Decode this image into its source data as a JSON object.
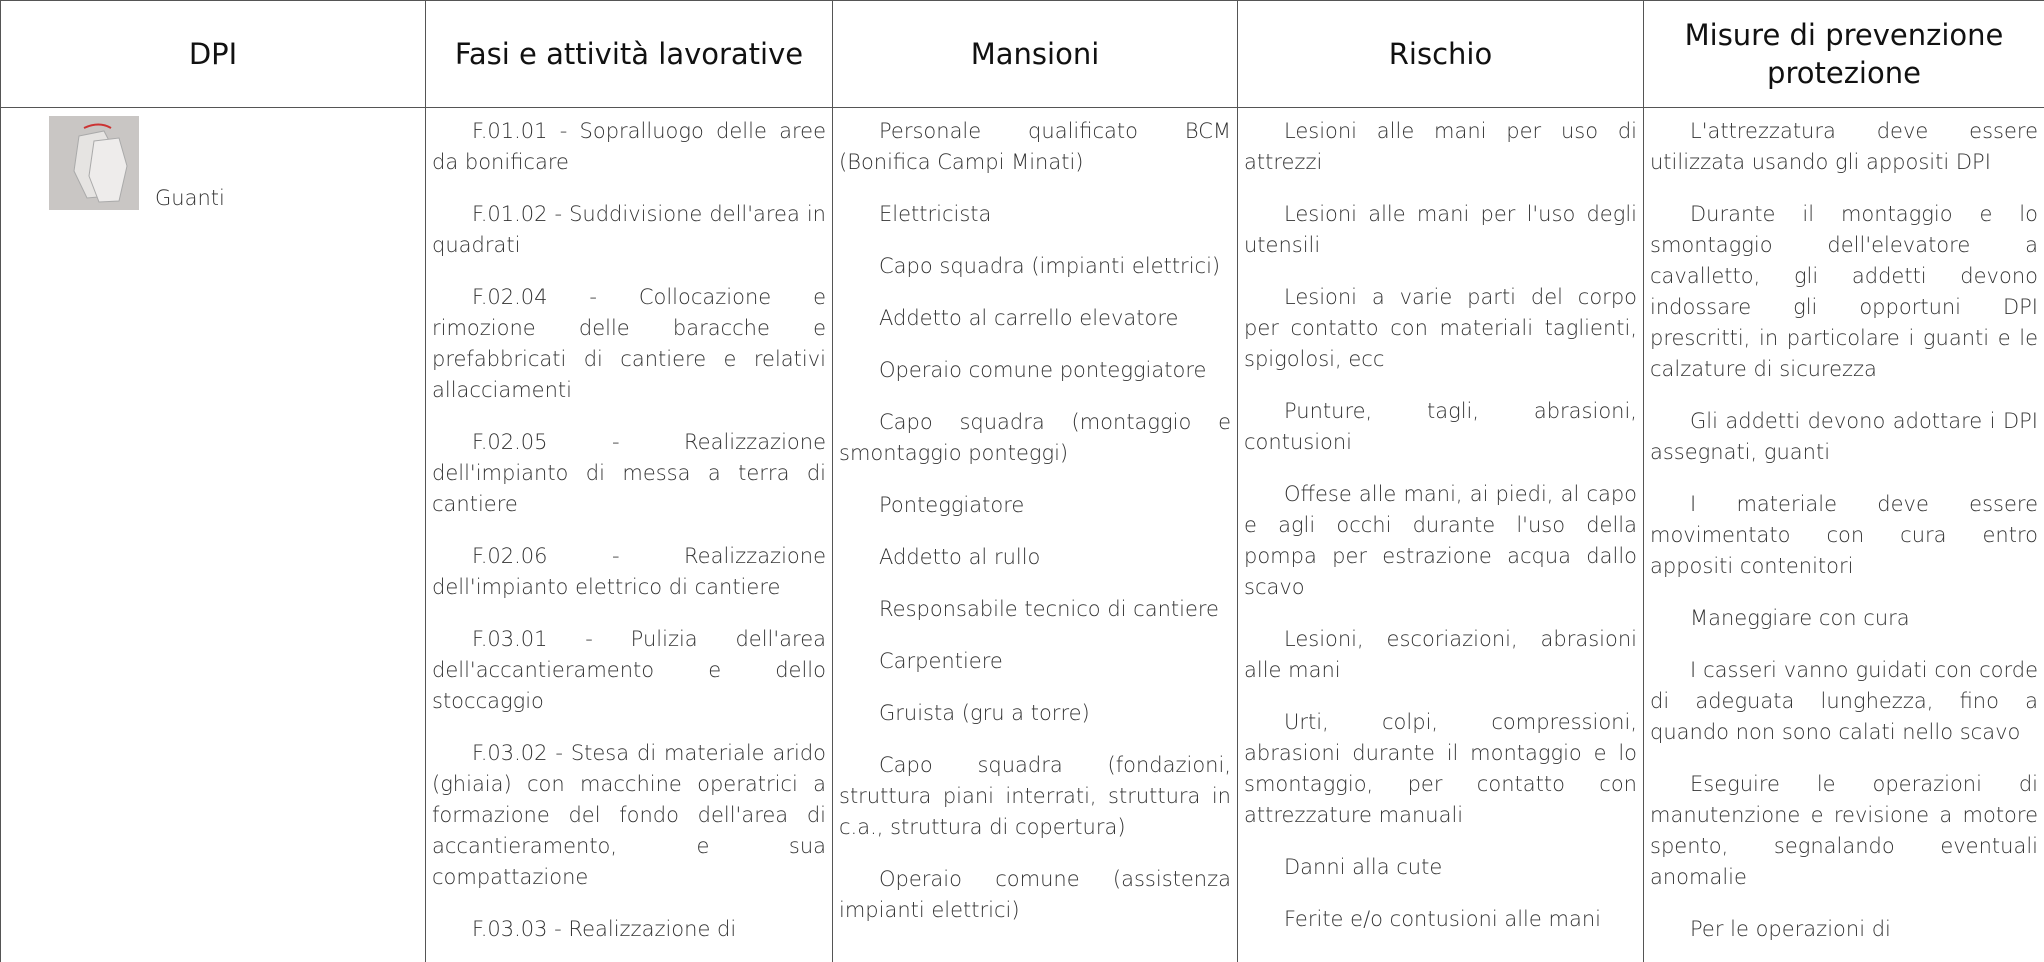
{
  "header": [
    "DPI",
    "Fasi e attività lavorative",
    "Mansioni",
    "Rischio",
    "Misure di prevenzione protezione"
  ],
  "row": {
    "dpi": "Guanti",
    "fasi": [
      "F.01.01 - Sopralluogo delle aree da bonificare",
      "F.01.02 - Suddivisione dell'area in quadrati",
      "F.02.04 - Collocazione e rimozione delle baracche e prefabbricati di cantiere e relativi allacciamenti",
      "F.02.05 - Realizzazione dell'impianto di messa a terra di cantiere",
      "F.02.06 - Realizzazione dell'impianto elettrico di cantiere",
      "F.03.01 - Pulizia dell'area dell'accantieramento e dello stoccaggio",
      "F.03.02 - Stesa di materiale arido (ghiaia) con macchine operatrici a formazione del fondo dell'area di accantieramento, e sua compattazione",
      "F.03.03 - Realizzazione di"
    ],
    "mansioni": [
      "Personale qualificato BCM (Bonifica Campi Minati)",
      "Elettricista",
      "Capo squadra (impianti elettrici)",
      "Addetto al carrello elevatore",
      "Operaio comune ponteggiatore",
      "Capo squadra (montaggio e smontaggio ponteggi)",
      "Ponteggiatore",
      "Addetto al rullo",
      "Responsabile tecnico di cantiere",
      "Carpentiere",
      "Gruista (gru a torre)",
      "Capo squadra (fondazioni, struttura piani interrati, struttura in c.a., struttura di copertura)",
      "Operaio comune (assistenza impianti elettrici)"
    ],
    "rischio": [
      "Lesioni alle mani per uso di attrezzi",
      "Lesioni alle mani per l'uso degli utensili",
      "Lesioni a varie parti del corpo per contatto con materiali taglienti, spigolosi, ecc",
      "Punture, tagli, abrasioni, contusioni",
      "Offese alle mani, ai piedi, al capo e agli occhi durante l'uso della pompa per estrazione acqua dallo scavo",
      "Lesioni, escoriazioni, abrasioni alle mani",
      "Urti, colpi, compressioni, abrasioni durante il montaggio e lo smontaggio, per contatto con attrezzature manuali",
      "Danni alla cute",
      "Ferite e/o contusioni alle mani"
    ],
    "misure": [
      "L'attrezzatura deve essere utilizzata usando gli appositi DPI",
      "Durante il montaggio e lo smontaggio dell'elevatore a cavalletto, gli addetti devono indossare gli opportuni DPI prescritti, in particolare i guanti e le calzature di sicurezza",
      "Gli addetti devono adottare i DPI assegnati, guanti",
      "I materiale deve essere movimentato con cura entro appositi contenitori",
      "Maneggiare con cura",
      "I casseri vanno guidati con corde di adeguata lunghezza, fino a quando non sono calati nello scavo",
      "Eseguire le operazioni di manutenzione e revisione a motore spento, segnalando eventuali anomalie",
      "Per le operazioni di"
    ]
  }
}
